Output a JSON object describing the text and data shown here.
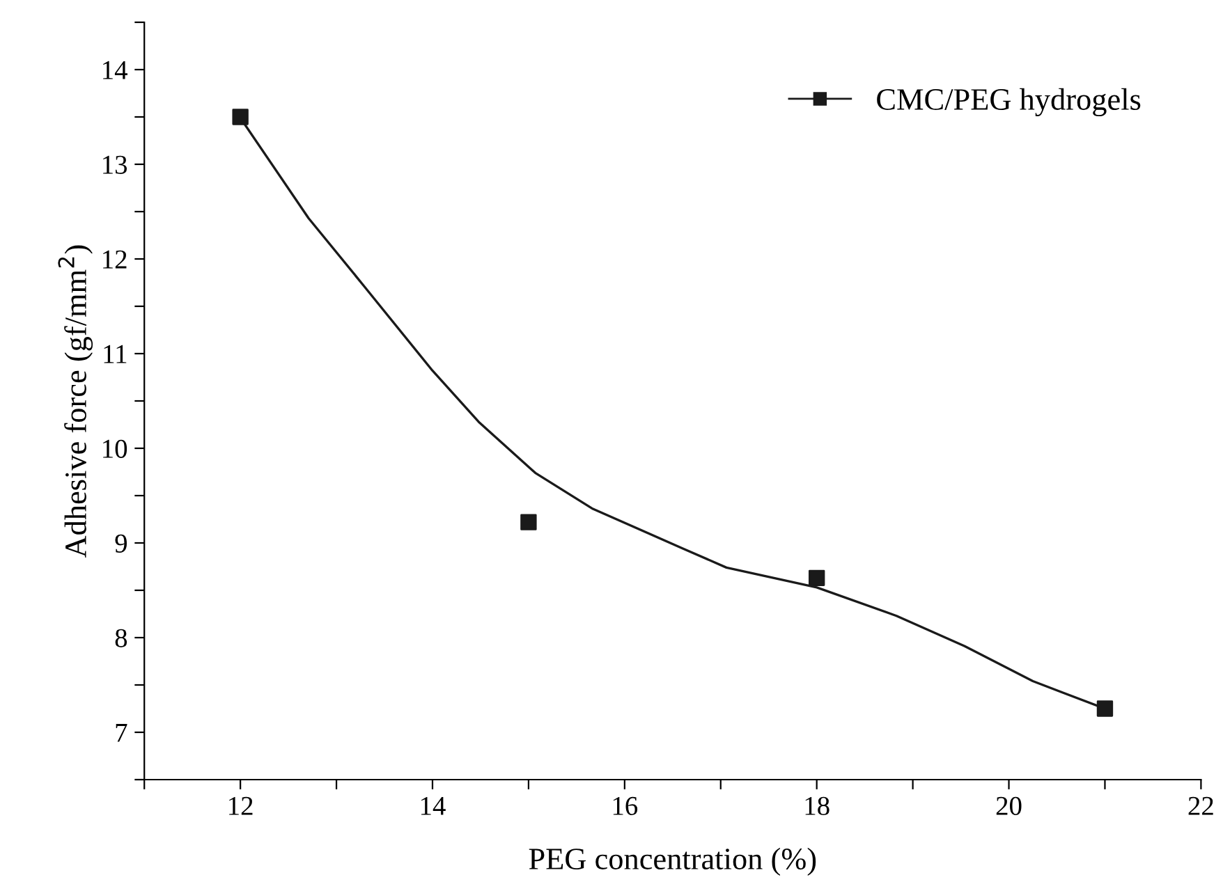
{
  "chart_data": {
    "type": "scatter",
    "xlabel": "PEG concentration (%)",
    "ylabel": "Adhesive force (gf/mm$^{2}$)",
    "series": [
      {
        "name": "CMC/PEG hydrogels",
        "color": "#1a1a1a",
        "marker": "square",
        "x": [
          12,
          15,
          18,
          21
        ],
        "values": [
          13.5,
          9.22,
          8.63,
          7.25
        ]
      },
      {
        "type": "line",
        "color": "#1a1a1a",
        "marker": "none",
        "line_style": "solid",
        "x": [
          12,
          12.71,
          13.29,
          14,
          14.48,
          15.07,
          15.67,
          16.61,
          17.06,
          18,
          18.83,
          19.54,
          20.25,
          21
        ],
        "values": [
          13.49,
          12.43,
          11.71,
          10.82,
          10.28,
          9.74,
          9.36,
          8.94,
          8.74,
          8.53,
          8.23,
          7.91,
          7.54,
          7.25
        ]
      }
    ],
    "xlim": [
      11,
      22
    ],
    "ylim": [
      6.5,
      14.5
    ],
    "xticks": [
      {
        "value": 11,
        "label": null
      },
      12,
      {
        "value": 13,
        "label": null
      },
      14,
      {
        "value": 15,
        "label": null
      },
      16,
      {
        "value": 17,
        "label": null
      },
      18,
      {
        "value": 19,
        "label": null
      },
      20,
      {
        "value": 21,
        "label": null
      },
      22
    ],
    "yticks": [
      {
        "value": 6.5,
        "label": null
      },
      7,
      {
        "value": 7.5,
        "label": null
      },
      8,
      {
        "value": 8.5,
        "label": null
      },
      9,
      {
        "value": 9.5,
        "label": null
      },
      10,
      {
        "value": 10.5,
        "label": null
      },
      11,
      {
        "value": 11.5,
        "label": null
      },
      12,
      {
        "value": 12.5,
        "label": null
      },
      13,
      {
        "value": 13.5,
        "label": null
      },
      14,
      {
        "value": 14.5,
        "label": null
      }
    ],
    "grid": false,
    "legend": "top right"
  }
}
